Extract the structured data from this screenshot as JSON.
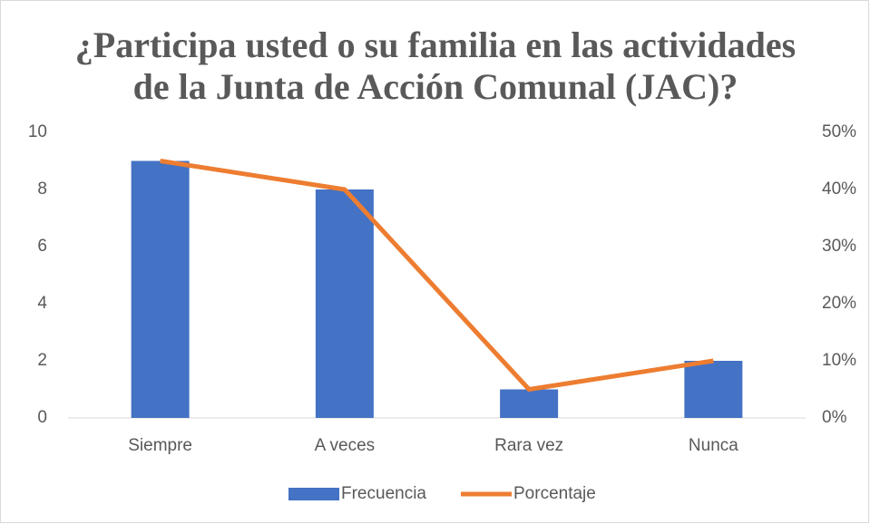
{
  "chart_data": {
    "type": "combo",
    "title": [
      "¿Participa usted o su familia en las actividades",
      "de la Junta de Acción Comunal (JAC)?"
    ],
    "categories": [
      "Siempre",
      "A veces",
      "Rara vez",
      "Nunca"
    ],
    "series": [
      {
        "name": "Frecuencia",
        "type": "bar",
        "color": "#4472c4",
        "values": [
          9,
          8,
          1,
          2
        ]
      },
      {
        "name": "Porcentaje",
        "type": "line",
        "axis": "y2",
        "color": "#ed7d31",
        "values": [
          45,
          40,
          5,
          10
        ]
      }
    ],
    "ylim": [
      0,
      10
    ],
    "yticks": [
      0,
      2,
      4,
      6,
      8,
      10
    ],
    "y2lim": [
      0,
      50
    ],
    "y2ticks": [
      {
        "value": 0,
        "label": "0%"
      },
      {
        "value": 10,
        "label": "10%"
      },
      {
        "value": 20,
        "label": "20%"
      },
      {
        "value": 30,
        "label": "30%"
      },
      {
        "value": 40,
        "label": "40%"
      },
      {
        "value": 50,
        "label": "50%"
      }
    ],
    "legend": "bottom"
  }
}
